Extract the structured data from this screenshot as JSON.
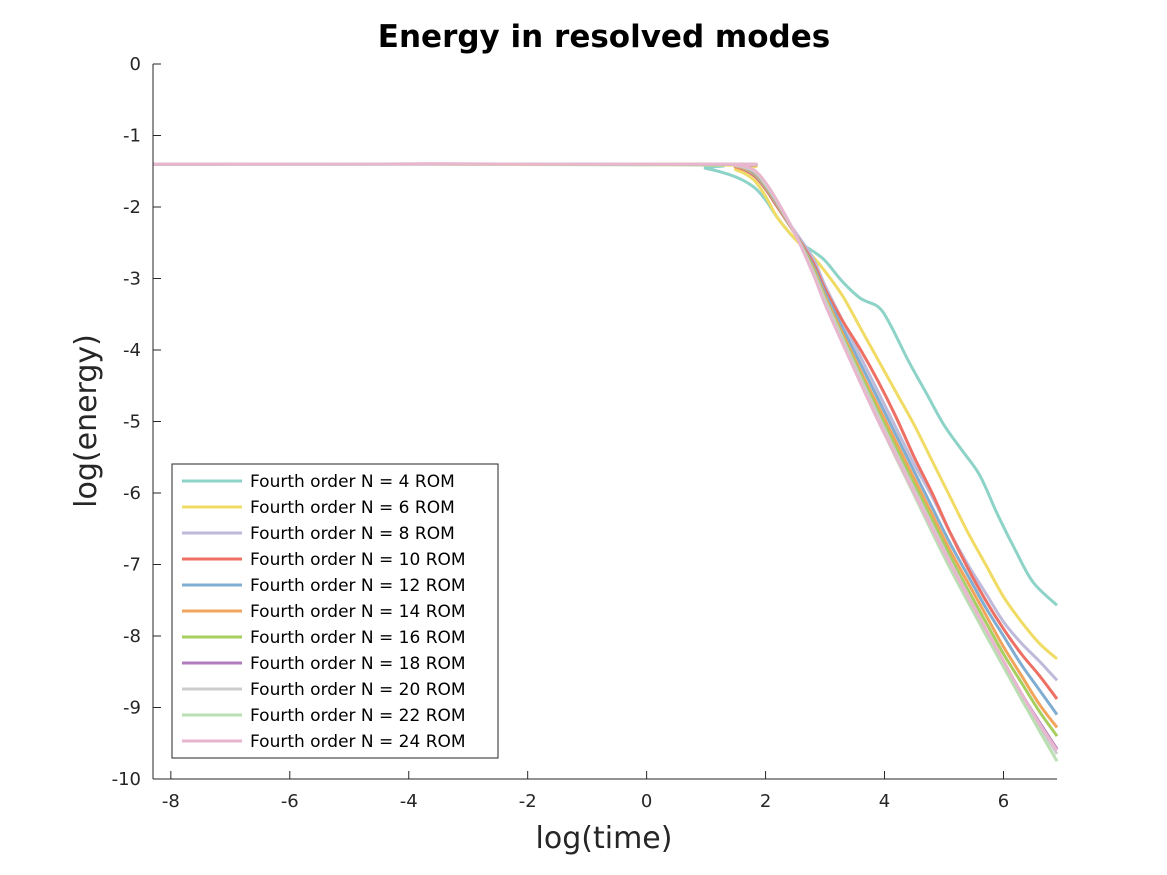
{
  "chart_data": {
    "type": "line",
    "title": "Energy in resolved modes",
    "xlabel": "log(time)",
    "ylabel": "log(energy)",
    "xlim": [
      -8.3,
      6.9
    ],
    "ylim": [
      -10,
      0
    ],
    "xticks": [
      -8,
      -6,
      -4,
      -2,
      0,
      2,
      4,
      6
    ],
    "yticks": [
      0,
      -1,
      -2,
      -3,
      -4,
      -5,
      -6,
      -7,
      -8,
      -9,
      -10
    ],
    "legend_position": "bottom-left",
    "series": [
      {
        "name": "Fourth order N = 4 ROM",
        "color": "#8dd3c7",
        "x": [
          -8.3,
          0.5,
          1.0,
          1.5,
          1.8,
          2.0,
          2.2,
          2.5,
          2.8,
          3.0,
          3.3,
          3.6,
          3.9,
          4.1,
          4.4,
          4.7,
          5.0,
          5.3,
          5.6,
          5.9,
          6.2,
          6.5,
          6.9
        ],
        "y": [
          -1.4,
          -1.41,
          -1.46,
          -1.58,
          -1.72,
          -1.9,
          -2.15,
          -2.45,
          -2.62,
          -2.75,
          -3.05,
          -3.28,
          -3.4,
          -3.65,
          -4.15,
          -4.6,
          -5.05,
          -5.4,
          -5.75,
          -6.3,
          -6.8,
          -7.25,
          -7.57
        ]
      },
      {
        "name": "Fourth order N = 6 ROM",
        "color": "#f0dc64",
        "x": [
          -8.3,
          1.0,
          1.5,
          1.8,
          2.0,
          2.2,
          2.5,
          2.8,
          3.0,
          3.3,
          3.6,
          3.9,
          4.2,
          4.5,
          4.8,
          5.1,
          5.4,
          5.7,
          6.0,
          6.3,
          6.6,
          6.9
        ],
        "y": [
          -1.4,
          -1.41,
          -1.48,
          -1.62,
          -1.85,
          -2.15,
          -2.45,
          -2.7,
          -2.9,
          -3.25,
          -3.7,
          -4.15,
          -4.6,
          -5.05,
          -5.55,
          -6.05,
          -6.55,
          -7.0,
          -7.45,
          -7.8,
          -8.1,
          -8.32
        ]
      },
      {
        "name": "Fourth order N = 8 ROM",
        "color": "#bebada",
        "x": [
          -8.3,
          1.0,
          1.5,
          1.8,
          2.0,
          2.2,
          2.5,
          2.8,
          3.0,
          3.3,
          3.6,
          3.9,
          4.2,
          4.5,
          4.8,
          5.1,
          5.4,
          5.7,
          6.0,
          6.3,
          6.6,
          6.9
        ],
        "y": [
          -1.4,
          -1.4,
          -1.44,
          -1.55,
          -1.75,
          -2.0,
          -2.35,
          -2.72,
          -3.1,
          -3.6,
          -4.1,
          -4.6,
          -5.1,
          -5.6,
          -6.05,
          -6.55,
          -7.0,
          -7.4,
          -7.8,
          -8.1,
          -8.35,
          -8.62
        ]
      },
      {
        "name": "Fourth order N = 10 ROM",
        "color": "#ee6f63",
        "x": [
          -8.3,
          1.0,
          1.5,
          1.8,
          2.0,
          2.2,
          2.5,
          2.8,
          3.0,
          3.3,
          3.6,
          3.9,
          4.2,
          4.5,
          4.8,
          5.1,
          5.4,
          5.7,
          6.0,
          6.3,
          6.6,
          6.9
        ],
        "y": [
          -1.4,
          -1.4,
          -1.44,
          -1.56,
          -1.75,
          -2.0,
          -2.38,
          -2.78,
          -3.15,
          -3.6,
          -4.0,
          -4.45,
          -4.95,
          -5.5,
          -6.0,
          -6.55,
          -7.05,
          -7.5,
          -7.9,
          -8.25,
          -8.55,
          -8.88
        ]
      },
      {
        "name": "Fourth order N = 12 ROM",
        "color": "#80aed2",
        "x": [
          -8.3,
          1.0,
          1.5,
          1.8,
          2.0,
          2.2,
          2.5,
          2.8,
          3.0,
          3.3,
          3.6,
          3.9,
          4.2,
          4.5,
          4.8,
          5.1,
          5.4,
          5.7,
          6.0,
          6.3,
          6.6,
          6.9
        ],
        "y": [
          -1.4,
          -1.4,
          -1.43,
          -1.54,
          -1.73,
          -1.98,
          -2.38,
          -2.82,
          -3.2,
          -3.7,
          -4.2,
          -4.7,
          -5.2,
          -5.7,
          -6.2,
          -6.7,
          -7.15,
          -7.6,
          -8.0,
          -8.4,
          -8.75,
          -9.1
        ]
      },
      {
        "name": "Fourth order N = 14 ROM",
        "color": "#f3a45c",
        "x": [
          -8.3,
          1.0,
          1.5,
          1.8,
          2.0,
          2.2,
          2.5,
          2.8,
          3.0,
          3.3,
          3.6,
          3.9,
          4.2,
          4.5,
          4.8,
          5.1,
          5.4,
          5.7,
          6.0,
          6.3,
          6.6,
          6.9
        ],
        "y": [
          -1.4,
          -1.4,
          -1.43,
          -1.53,
          -1.72,
          -1.97,
          -2.38,
          -2.85,
          -3.25,
          -3.78,
          -4.3,
          -4.8,
          -5.3,
          -5.8,
          -6.3,
          -6.8,
          -7.25,
          -7.7,
          -8.15,
          -8.55,
          -8.95,
          -9.28
        ]
      },
      {
        "name": "Fourth order N = 16 ROM",
        "color": "#a6cf5e",
        "x": [
          -8.3,
          1.0,
          1.5,
          1.8,
          2.0,
          2.2,
          2.5,
          2.8,
          3.0,
          3.3,
          3.6,
          3.9,
          4.2,
          4.5,
          4.8,
          5.1,
          5.4,
          5.7,
          6.0,
          6.3,
          6.6,
          6.9
        ],
        "y": [
          -1.4,
          -1.4,
          -1.42,
          -1.52,
          -1.71,
          -1.96,
          -2.38,
          -2.87,
          -3.28,
          -3.82,
          -4.35,
          -4.87,
          -5.38,
          -5.88,
          -6.38,
          -6.88,
          -7.35,
          -7.8,
          -8.25,
          -8.65,
          -9.05,
          -9.4
        ]
      },
      {
        "name": "Fourth order N = 18 ROM",
        "color": "#b07cbe",
        "x": [
          -8.3,
          1.0,
          1.5,
          1.8,
          2.0,
          2.2,
          2.5,
          2.8,
          3.0,
          3.3,
          3.6,
          3.9,
          4.2,
          4.5,
          4.8,
          5.1,
          5.4,
          5.7,
          6.0,
          6.3,
          6.6,
          6.9
        ],
        "y": [
          -1.4,
          -1.4,
          -1.42,
          -1.51,
          -1.7,
          -1.95,
          -2.38,
          -2.9,
          -3.32,
          -3.88,
          -4.45,
          -5.0,
          -5.5,
          -6.0,
          -6.5,
          -6.98,
          -7.45,
          -7.9,
          -8.35,
          -8.8,
          -9.2,
          -9.58
        ]
      },
      {
        "name": "Fourth order N = 20 ROM",
        "color": "#cccccc",
        "x": [
          -8.3,
          1.0,
          1.5,
          1.8,
          2.0,
          2.2,
          2.5,
          2.8,
          3.0,
          3.3,
          3.6,
          3.9,
          4.2,
          4.5,
          4.8,
          5.1,
          5.4,
          5.7,
          6.0,
          6.3,
          6.6,
          6.9
        ],
        "y": [
          -1.4,
          -1.4,
          -1.42,
          -1.5,
          -1.69,
          -1.94,
          -2.38,
          -2.9,
          -3.3,
          -3.85,
          -4.4,
          -4.93,
          -5.45,
          -5.95,
          -6.45,
          -6.95,
          -7.42,
          -7.9,
          -8.35,
          -8.8,
          -9.25,
          -9.65
        ]
      },
      {
        "name": "Fourth order N = 22 ROM",
        "color": "#b9dfb3",
        "x": [
          -8.3,
          1.0,
          1.5,
          1.8,
          2.0,
          2.2,
          2.5,
          2.8,
          3.0,
          3.3,
          3.6,
          3.9,
          4.2,
          4.5,
          4.8,
          5.1,
          5.4,
          5.7,
          6.0,
          6.3,
          6.6,
          6.9
        ],
        "y": [
          -1.4,
          -1.4,
          -1.41,
          -1.49,
          -1.68,
          -1.93,
          -2.38,
          -2.92,
          -3.34,
          -3.9,
          -4.46,
          -5.0,
          -5.52,
          -6.03,
          -6.55,
          -7.05,
          -7.52,
          -7.98,
          -8.43,
          -8.88,
          -9.32,
          -9.75
        ]
      },
      {
        "name": "Fourth order N = 24 ROM",
        "color": "#e9b6d0",
        "x": [
          -8.3,
          1.0,
          1.5,
          1.8,
          2.0,
          2.2,
          2.5,
          2.8,
          3.0,
          3.3,
          3.6,
          3.9,
          4.2,
          4.5,
          4.8,
          5.1,
          5.4,
          5.7,
          6.0,
          6.3,
          6.6,
          6.9
        ],
        "y": [
          -1.4,
          -1.4,
          -1.41,
          -1.48,
          -1.66,
          -1.92,
          -2.38,
          -2.94,
          -3.36,
          -3.92,
          -4.47,
          -5.0,
          -5.5,
          -6.0,
          -6.5,
          -6.98,
          -7.45,
          -7.9,
          -8.35,
          -8.8,
          -9.22,
          -9.6
        ]
      }
    ]
  }
}
